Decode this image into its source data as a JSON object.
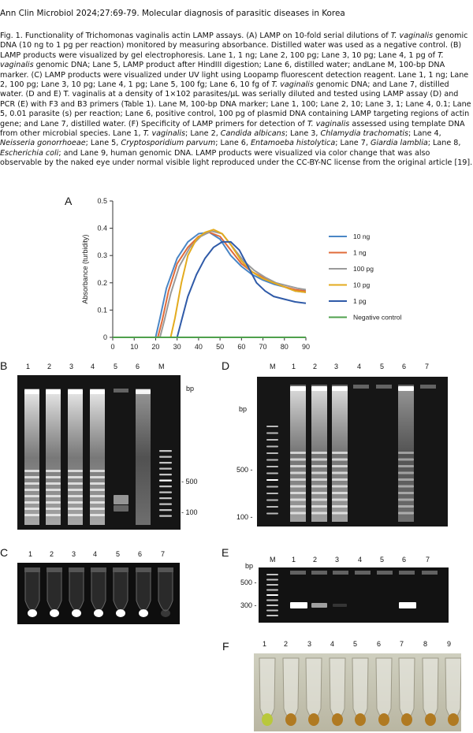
{
  "header": "Ann Clin Microbiol 2024;27:69-79. Molecular diagnosis of parasitic diseases in Korea",
  "caption": [
    {
      "t": "Fig. 1. Functionality of Trichomonas vaginalis actin LAMP assays. (A) LAMP on 10-fold serial dilutions of "
    },
    {
      "t": "T. vaginalis",
      "i": true
    },
    {
      "t": " genomic DNA (10 ng to 1 pg per reaction) monitored by measuring absorbance. Distilled water was used as a negative control. (B) LAMP products were visualized by gel electrophoresis. Lane 1, 1 ng; Lane 2, 100 pg; Lane 3, 10 pg; Lane 4, 1 pg of "
    },
    {
      "t": "T. vaginalis",
      "i": true
    },
    {
      "t": " genomic DNA; Lane 5, LAMP product after HindIII digestion; Lane 6, distilled water; andLane M, 100-bp DNA marker. (C) LAMP products were visualized under UV light using Loopamp fluorescent detection reagent. Lane 1, 1 ng; Lane 2, 100 pg; Lane 3, 10 pg; Lane 4, 1 pg; Lane 5, 100 fg; Lane 6, 10 fg of "
    },
    {
      "t": "T. vaginalis",
      "i": true
    },
    {
      "t": " genomic DNA; and Lane 7, distilled water. (D and E) T. vaginalis at a density of 1×102 parasites/µL was serially diluted and tested using LAMP assay (D) and PCR (E) with F3 and B3 primers (Table 1). Lane M, 100-bp DNA marker; Lane 1, 100; Lane 2, 10; Lane 3, 1; Lane 4, 0.1; Lane 5, 0.01 parasite (s) per reaction; Lane 6, positive control, 100 pg of plasmid DNA containing LAMP targeting regions of actin gene; and Lane 7, distilled water. (F) Specificity of LAMP primers for detection of "
    },
    {
      "t": "T. vaginalis",
      "i": true
    },
    {
      "t": " assessed using template DNA from other microbial species. Lane 1, "
    },
    {
      "t": "T. vaginalis",
      "i": true
    },
    {
      "t": "; Lane 2, "
    },
    {
      "t": "Candida albicans",
      "i": true
    },
    {
      "t": "; Lane 3, "
    },
    {
      "t": "Chlamydia trachomatis",
      "i": true
    },
    {
      "t": "; Lane 4, "
    },
    {
      "t": "Neisseria gonorrhoeae",
      "i": true
    },
    {
      "t": "; Lane 5, "
    },
    {
      "t": "Cryptosporidium parvum",
      "i": true
    },
    {
      "t": "; Lane 6, "
    },
    {
      "t": "Entamoeba histolytica",
      "i": true
    },
    {
      "t": "; Lane 7, "
    },
    {
      "t": "Giardia lamblia",
      "i": true
    },
    {
      "t": "; Lane 8, "
    },
    {
      "t": "Escherichia coli",
      "i": true
    },
    {
      "t": "; and Lane 9, human genomic DNA. LAMP products were visualized via color change that was also observable by the naked eye under normal visible light reproduced under the CC-BY-NC license from the original article [19]."
    }
  ],
  "panels": {
    "A": {
      "letter": "A"
    },
    "B": {
      "letter": "B",
      "lanes": [
        "1",
        "2",
        "3",
        "4",
        "5",
        "6",
        "M"
      ],
      "unit": "bp",
      "markers": [
        "500",
        "100"
      ]
    },
    "C": {
      "letter": "C",
      "lanes": [
        "1",
        "2",
        "3",
        "4",
        "5",
        "6",
        "7"
      ]
    },
    "D": {
      "letter": "D",
      "lanes": [
        "M",
        "1",
        "2",
        "3",
        "4",
        "5",
        "6",
        "7"
      ],
      "unit": "bp",
      "markers": [
        "500",
        "100"
      ]
    },
    "E": {
      "letter": "E",
      "lanes": [
        "M",
        "1",
        "2",
        "3",
        "4",
        "5",
        "6",
        "7"
      ],
      "unit": "bp",
      "markers": [
        "500",
        "300"
      ]
    },
    "F": {
      "letter": "F",
      "lanes": [
        "1",
        "2",
        "3",
        "4",
        "5",
        "6",
        "7",
        "8",
        "9"
      ]
    }
  },
  "chart_data": {
    "type": "line",
    "title": "",
    "xlabel": "",
    "ylabel": "Absorbance (turbidity)",
    "xlim": [
      0,
      90
    ],
    "ylim": [
      0,
      0.5
    ],
    "xticks": [
      0,
      10,
      20,
      30,
      40,
      50,
      60,
      70,
      80,
      90
    ],
    "yticks": [
      0,
      0.1,
      0.2,
      0.3,
      0.4,
      0.5
    ],
    "ytick_labels": [
      "0",
      "0.1",
      "0.2",
      "0.3",
      "0.4",
      "0.5"
    ],
    "grid": false,
    "legend": "right",
    "series": [
      {
        "name": "10 ng",
        "color": "#4a86c5",
        "x": [
          0,
          20,
          22,
          25,
          30,
          35,
          40,
          45,
          50,
          55,
          60,
          65,
          70,
          75,
          80,
          85,
          90
        ],
        "y": [
          0,
          0,
          0.07,
          0.18,
          0.29,
          0.35,
          0.38,
          0.385,
          0.36,
          0.3,
          0.26,
          0.23,
          0.21,
          0.195,
          0.185,
          0.17,
          0.165
        ]
      },
      {
        "name": "1 ng",
        "color": "#e06b3a",
        "x": [
          0,
          21,
          23,
          26,
          30,
          35,
          40,
          45,
          50,
          55,
          60,
          65,
          70,
          75,
          80,
          85,
          90
        ],
        "y": [
          0,
          0,
          0.06,
          0.17,
          0.27,
          0.33,
          0.37,
          0.385,
          0.37,
          0.32,
          0.27,
          0.24,
          0.22,
          0.2,
          0.185,
          0.175,
          0.17
        ]
      },
      {
        "name": "100 pg",
        "color": "#9a9a9a",
        "x": [
          0,
          22,
          24,
          27,
          31,
          36,
          41,
          46,
          51,
          56,
          61,
          66,
          71,
          76,
          81,
          86,
          90
        ],
        "y": [
          0,
          0,
          0.06,
          0.16,
          0.26,
          0.33,
          0.37,
          0.39,
          0.38,
          0.33,
          0.28,
          0.245,
          0.22,
          0.2,
          0.19,
          0.18,
          0.175
        ]
      },
      {
        "name": "10 pg",
        "color": "#e3ab1e",
        "x": [
          0,
          27,
          29,
          32,
          35,
          39,
          43,
          47,
          51,
          55,
          60,
          65,
          70,
          75,
          80,
          85,
          90
        ],
        "y": [
          0,
          0,
          0.07,
          0.2,
          0.3,
          0.36,
          0.385,
          0.395,
          0.38,
          0.34,
          0.28,
          0.24,
          0.215,
          0.2,
          0.185,
          0.17,
          0.165
        ]
      },
      {
        "name": "1 pg",
        "color": "#2f5aa8",
        "x": [
          0,
          30,
          32,
          35,
          39,
          43,
          47,
          51,
          55,
          59,
          63,
          67,
          71,
          75,
          80,
          85,
          90
        ],
        "y": [
          0,
          0,
          0.06,
          0.15,
          0.23,
          0.29,
          0.33,
          0.35,
          0.35,
          0.32,
          0.26,
          0.2,
          0.17,
          0.15,
          0.14,
          0.13,
          0.125
        ]
      },
      {
        "name": "Negative control",
        "color": "#4fa04c",
        "x": [
          0,
          90
        ],
        "y": [
          0,
          0
        ]
      }
    ]
  }
}
